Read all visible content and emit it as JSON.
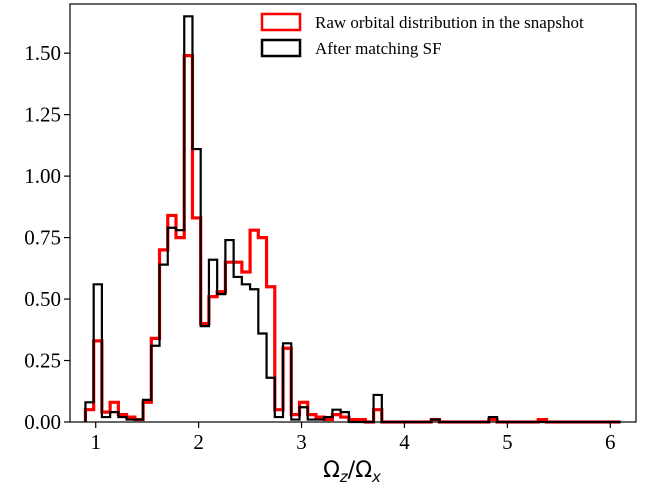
{
  "chart_data": {
    "type": "histogram",
    "xlabel": "Ωz/Ωx",
    "xlim": [
      0.75,
      6.25
    ],
    "ylim": [
      0,
      1.7
    ],
    "xticks": [
      1,
      2,
      3,
      4,
      5,
      6
    ],
    "xtick_labels": [
      "1",
      "2",
      "3",
      "4",
      "5",
      "6"
    ],
    "yticks": [
      0,
      0.25,
      0.5,
      0.75,
      1.0,
      1.25,
      1.5
    ],
    "ytick_labels": [
      "0.00",
      "0.25",
      "0.50",
      "0.75",
      "1.00",
      "1.25",
      "1.50"
    ],
    "grid": false,
    "legend_position": "top-right",
    "bin_edges": [
      0.9,
      0.98,
      1.06,
      1.14,
      1.22,
      1.3,
      1.38,
      1.46,
      1.54,
      1.62,
      1.7,
      1.78,
      1.86,
      1.94,
      2.02,
      2.1,
      2.18,
      2.26,
      2.34,
      2.42,
      2.5,
      2.58,
      2.66,
      2.74,
      2.82,
      2.9,
      2.98,
      3.06,
      3.14,
      3.22,
      3.3,
      3.38,
      3.46,
      3.54,
      3.62,
      3.7,
      3.78,
      3.86,
      3.94,
      4.02,
      4.1,
      4.18,
      4.26,
      4.34,
      4.42,
      4.5,
      4.58,
      4.66,
      4.74,
      4.82,
      4.9,
      4.98,
      5.06,
      5.14,
      5.22,
      5.3,
      5.38,
      5.46,
      5.54,
      5.62,
      5.7,
      5.78,
      5.86,
      5.94,
      6.02,
      6.1
    ],
    "series": [
      {
        "name": "Raw orbital distribution in the snapshot",
        "color": "#ff0000",
        "values": [
          0.05,
          0.33,
          0.04,
          0.08,
          0.03,
          0.02,
          0.01,
          0.08,
          0.34,
          0.7,
          0.84,
          0.75,
          1.49,
          0.83,
          0.4,
          0.51,
          0.53,
          0.65,
          0.65,
          0.61,
          0.78,
          0.75,
          0.55,
          0.05,
          0.3,
          0.03,
          0.08,
          0.03,
          0.02,
          0.01,
          0.03,
          0.02,
          0.01,
          0.01,
          0.0,
          0.05,
          0.0,
          0.0,
          0.0,
          0.0,
          0.0,
          0.0,
          0.01,
          0.0,
          0.0,
          0.0,
          0.0,
          0.0,
          0.0,
          0.01,
          0.0,
          0.0,
          0.0,
          0.0,
          0.0,
          0.01,
          0.0,
          0.0,
          0.0,
          0.0,
          0.0,
          0.0,
          0.0,
          0.0,
          0.0
        ]
      },
      {
        "name": "After matching SF",
        "color": "#000000",
        "values": [
          0.08,
          0.56,
          0.02,
          0.04,
          0.02,
          0.01,
          0.01,
          0.09,
          0.31,
          0.64,
          0.79,
          0.78,
          1.65,
          1.11,
          0.39,
          0.66,
          0.52,
          0.74,
          0.59,
          0.56,
          0.54,
          0.36,
          0.18,
          0.02,
          0.32,
          0.01,
          0.06,
          0.01,
          0.01,
          0.02,
          0.05,
          0.04,
          0.0,
          0.0,
          0.0,
          0.11,
          0.0,
          0.0,
          0.0,
          0.0,
          0.0,
          0.0,
          0.01,
          0.0,
          0.0,
          0.0,
          0.0,
          0.0,
          0.0,
          0.02,
          0.0,
          0.0,
          0.0,
          0.0,
          0.0,
          0.0,
          0.0,
          0.0,
          0.0,
          0.0,
          0.0,
          0.0,
          0.0,
          0.0,
          0.0
        ]
      }
    ]
  },
  "axes": {
    "xlabel_main": "Ω",
    "xlabel_sub1": "z",
    "xlabel_slash": "/Ω",
    "xlabel_sub2": "x"
  }
}
